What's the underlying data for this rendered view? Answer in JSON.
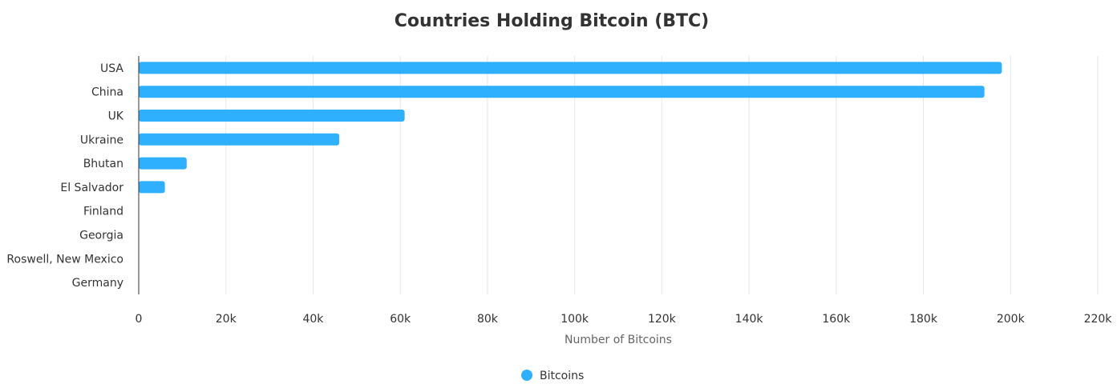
{
  "chart_data": {
    "type": "bar",
    "orientation": "horizontal",
    "title": "Countries Holding Bitcoin (BTC)",
    "xlabel": "Number of Bitcoins",
    "ylabel": "",
    "xlim": [
      0,
      220000
    ],
    "x_ticks": [
      {
        "value": 0,
        "label": "0"
      },
      {
        "value": 20000,
        "label": "20k"
      },
      {
        "value": 40000,
        "label": "40k"
      },
      {
        "value": 60000,
        "label": "60k"
      },
      {
        "value": 80000,
        "label": "80k"
      },
      {
        "value": 100000,
        "label": "100k"
      },
      {
        "value": 120000,
        "label": "120k"
      },
      {
        "value": 140000,
        "label": "140k"
      },
      {
        "value": 160000,
        "label": "160k"
      },
      {
        "value": 180000,
        "label": "180k"
      },
      {
        "value": 200000,
        "label": "200k"
      },
      {
        "value": 220000,
        "label": "220k"
      }
    ],
    "categories": [
      "USA",
      "China",
      "UK",
      "Ukraine",
      "Bhutan",
      "El Salvador",
      "Finland",
      "Georgia",
      "Roswell, New Mexico",
      "Germany"
    ],
    "series": [
      {
        "name": "Bitcoins",
        "color": "#2EB0FF",
        "values": [
          198000,
          194000,
          61000,
          46000,
          11000,
          6000,
          0,
          0,
          0,
          0
        ]
      }
    ],
    "grid": true,
    "legend_position": "bottom-center"
  }
}
